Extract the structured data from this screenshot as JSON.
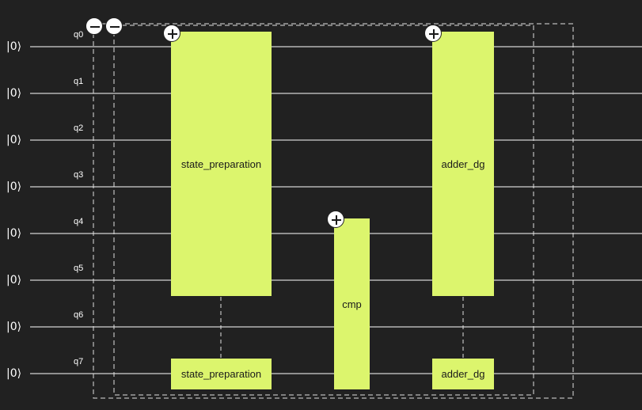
{
  "circuit": {
    "qubits": [
      {
        "ket": "|0⟩",
        "label": "q0"
      },
      {
        "ket": "|0⟩",
        "label": "q1"
      },
      {
        "ket": "|0⟩",
        "label": "q2"
      },
      {
        "ket": "|0⟩",
        "label": "q3"
      },
      {
        "ket": "|0⟩",
        "label": "q4"
      },
      {
        "ket": "|0⟩",
        "label": "q5"
      },
      {
        "ket": "|0⟩",
        "label": "q6"
      },
      {
        "ket": "|0⟩",
        "label": "q7"
      }
    ],
    "gates": {
      "state_prep_main": "state_preparation",
      "state_prep_bottom": "state_preparation",
      "cmp": "cmp",
      "adder_main": "adder_dg",
      "adder_bottom": "adder_dg"
    },
    "toggle_icons": {
      "collapse_outer": "collapse-icon",
      "collapse_inner": "collapse-icon",
      "expand_state_prep": "expand-icon",
      "expand_cmp": "expand-icon",
      "expand_adder": "expand-icon"
    },
    "colors": {
      "background": "#212121",
      "wire": "#ffffff",
      "gate_fill": "#dcf56d",
      "gate_text": "#1a1a1a",
      "dashed_box": "#e0e0e0"
    }
  }
}
